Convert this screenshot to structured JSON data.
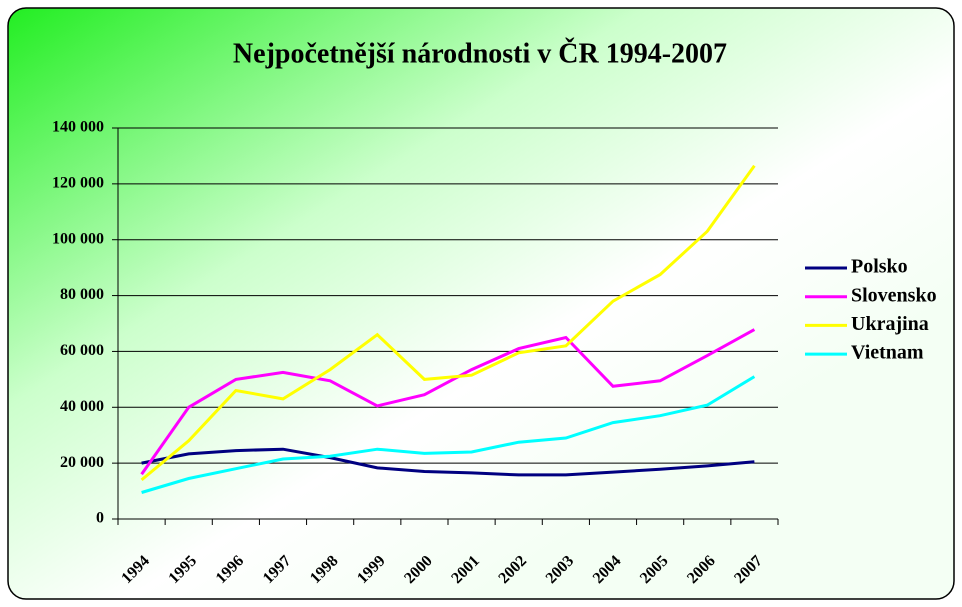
{
  "chart_data": {
    "type": "line",
    "title": "Nejpočetnější národnosti v ČR 1994-2007",
    "categories": [
      "1994",
      "1995",
      "1996",
      "1997",
      "1998",
      "1999",
      "2000",
      "2001",
      "2002",
      "2003",
      "2004",
      "2005",
      "2006",
      "2007"
    ],
    "series": [
      {
        "name": "Polsko",
        "color": "#000080",
        "values": [
          20000,
          23300,
          24500,
          25000,
          22000,
          18300,
          17000,
          16500,
          15800,
          15800,
          16800,
          17800,
          19000,
          20500
        ]
      },
      {
        "name": "Slovensko",
        "color": "#ff00ff",
        "values": [
          16000,
          40000,
          50000,
          52500,
          49500,
          40500,
          44500,
          53500,
          61000,
          65000,
          47500,
          49500,
          58500,
          67800
        ]
      },
      {
        "name": "Ukrajina",
        "color": "#ffff00",
        "values": [
          14000,
          28000,
          46000,
          43000,
          53500,
          66000,
          50000,
          51500,
          59500,
          62000,
          78000,
          87500,
          103000,
          126500
        ]
      },
      {
        "name": "Vietnam",
        "color": "#00ffff",
        "values": [
          9500,
          14500,
          18000,
          21500,
          22500,
          25000,
          23500,
          24000,
          27500,
          29000,
          34500,
          37000,
          40800,
          51000
        ]
      }
    ],
    "ylim": [
      0,
      140000
    ],
    "yticks": [
      0,
      {
        "value": 20000,
        "label": "20 000"
      },
      {
        "value": 40000,
        "label": "40 000"
      },
      {
        "value": 60000,
        "label": "60 000"
      },
      {
        "value": 80000,
        "label": "80 000"
      },
      {
        "value": 100000,
        "label": "100 000"
      },
      {
        "value": 120000,
        "label": "120 000"
      },
      {
        "value": 140000,
        "label": "140 000"
      }
    ],
    "grid": true,
    "legend": "right"
  }
}
